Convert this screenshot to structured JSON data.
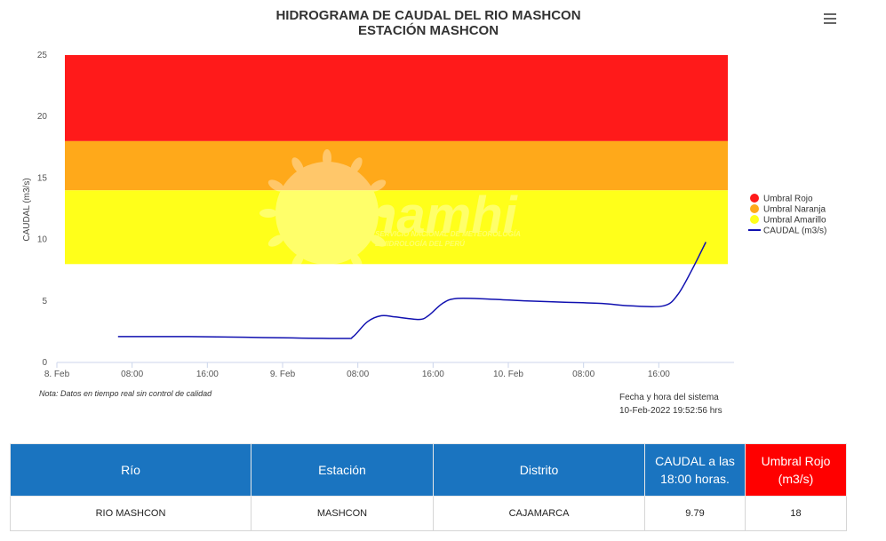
{
  "chart": {
    "title_line1": "HIDROGRAMA DE CAUDAL DEL RIO MASHCON",
    "title_line2": "ESTACIÓN MASHCON",
    "menu_icon": "hamburger-menu-icon",
    "note": "Nota: Datos en tiempo real sin control de calidad",
    "system_time_label": "Fecha y hora del sistema",
    "system_time_value": "10-Feb-2022 19:52:56 hrs",
    "watermark": {
      "brand": "Senamhi",
      "line1": "SERVICIO NACIONAL DE METEOROLOGÍA",
      "line2": "E HIDROLOGÍA DEL PERÚ"
    }
  },
  "chart_data": {
    "type": "line",
    "title": "HIDROGRAMA DE CAUDAL DEL RIO MASHCON",
    "subtitle": "ESTACIÓN MASHCON",
    "xlabel": "",
    "ylabel": "CAUDAL (m3/s)",
    "ylim": [
      0,
      25
    ],
    "yticks": [
      0,
      5,
      10,
      15,
      20,
      25
    ],
    "xlim_hours": [
      0,
      72
    ],
    "xticks": [
      {
        "h": 0,
        "label": "8. Feb"
      },
      {
        "h": 8,
        "label": "08:00"
      },
      {
        "h": 16,
        "label": "16:00"
      },
      {
        "h": 24,
        "label": "9. Feb"
      },
      {
        "h": 32,
        "label": "08:00"
      },
      {
        "h": 40,
        "label": "16:00"
      },
      {
        "h": 48,
        "label": "10. Feb"
      },
      {
        "h": 56,
        "label": "08:00"
      },
      {
        "h": 64,
        "label": "16:00"
      }
    ],
    "grid": false,
    "legend_position": "right",
    "bands": [
      {
        "name": "Umbral Rojo",
        "from": 18,
        "to": 25,
        "color": "#ff1a1a"
      },
      {
        "name": "Umbral Naranja",
        "from": 14,
        "to": 18,
        "color": "#ffa91a"
      },
      {
        "name": "Umbral Amarillo",
        "from": 8,
        "to": 14,
        "color": "#ffff1a"
      }
    ],
    "series": [
      {
        "name": "CAUDAL (m3/s)",
        "color": "#1010b0",
        "points": [
          [
            6.5,
            2.1
          ],
          [
            10,
            2.1
          ],
          [
            14,
            2.1
          ],
          [
            20,
            2.05
          ],
          [
            24,
            2.0
          ],
          [
            30.5,
            1.95
          ],
          [
            31.5,
            2.1
          ],
          [
            33,
            3.3
          ],
          [
            34.5,
            3.8
          ],
          [
            36,
            3.7
          ],
          [
            38.5,
            3.5
          ],
          [
            39.5,
            3.8
          ],
          [
            41,
            4.8
          ],
          [
            42.5,
            5.2
          ],
          [
            46,
            5.15
          ],
          [
            50,
            5.0
          ],
          [
            54,
            4.9
          ],
          [
            58,
            4.8
          ],
          [
            61,
            4.6
          ],
          [
            64.5,
            4.6
          ],
          [
            66,
            5.5
          ],
          [
            67.5,
            7.5
          ],
          [
            69,
            9.79
          ]
        ]
      }
    ]
  },
  "legend": [
    {
      "label": "Umbral Rojo",
      "color": "#ff1a1a",
      "kind": "circle"
    },
    {
      "label": "Umbral Naranja",
      "color": "#ffa91a",
      "kind": "circle"
    },
    {
      "label": "Umbral Amarillo",
      "color": "#ffff1a",
      "kind": "circle"
    },
    {
      "label": "CAUDAL (m3/s)",
      "color": "#1010b0",
      "kind": "line"
    }
  ],
  "table": {
    "headers": [
      "Río",
      "Estación",
      "Distrito",
      "CAUDAL a las 18:00 horas.",
      "Umbral Rojo (m3/s)"
    ],
    "row": [
      "RIO MASHCON",
      "MASHCON",
      "CAJAMARCA",
      "9.79",
      "18"
    ]
  }
}
